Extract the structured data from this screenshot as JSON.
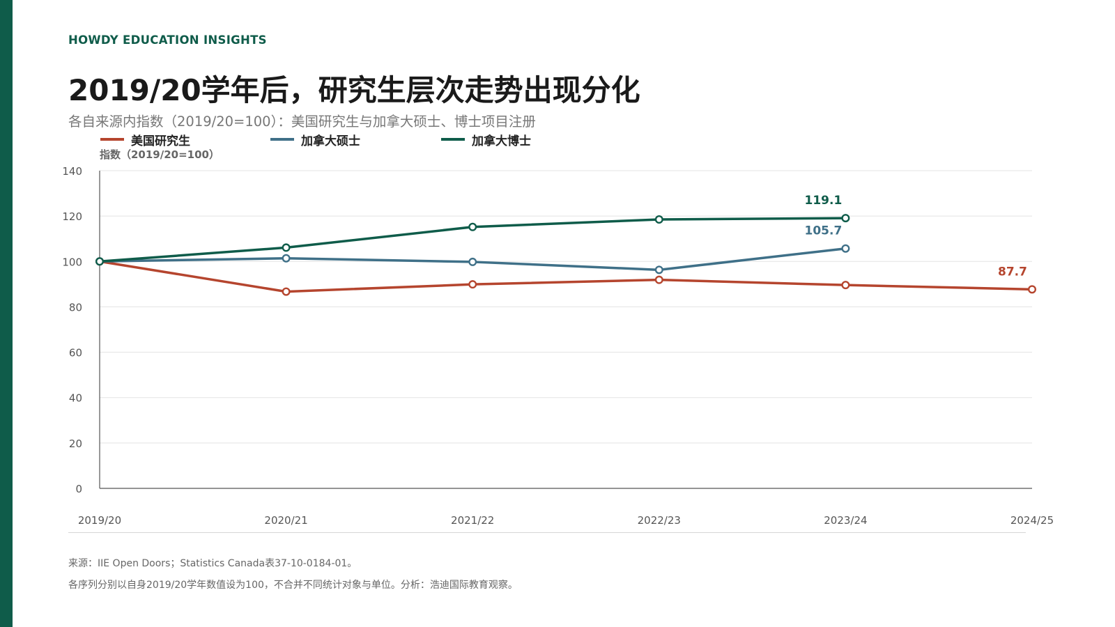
{
  "header": {
    "brand": "HOWDY EDUCATION INSIGHTS",
    "title": "2019/20学年后，研究生层次走势出现分化",
    "subtitle": "各自来源内指数（2019/20=100）：美国研究生与加拿大硕士、博士项目注册"
  },
  "legend": [
    {
      "label": "美国研究生",
      "color": "#b5452e"
    },
    {
      "label": "加拿大硕士",
      "color": "#3f7088"
    },
    {
      "label": "加拿大博士",
      "color": "#0f5c4a"
    }
  ],
  "chart_data": {
    "type": "line",
    "ylabel": "指数（2019/20=100）",
    "ylim": [
      0,
      140
    ],
    "yticks": [
      "0",
      "20",
      "40",
      "60",
      "80",
      "100",
      "120",
      "140"
    ],
    "categories": [
      "2019/20",
      "2020/21",
      "2021/22",
      "2022/23",
      "2023/24",
      "2024/25"
    ],
    "grid": true,
    "legend_position": "top-left",
    "series": [
      {
        "name": "美国研究生",
        "color": "#b5452e",
        "values": [
          100,
          86.7,
          89.9,
          91.9,
          89.6,
          87.7
        ],
        "end_label": "87.7"
      },
      {
        "name": "加拿大硕士",
        "color": "#3f7088",
        "values": [
          100,
          101.4,
          99.8,
          96.3,
          105.7,
          null
        ],
        "end_label": "105.7"
      },
      {
        "name": "加拿大博士",
        "color": "#0f5c4a",
        "values": [
          100,
          106.1,
          115.2,
          118.5,
          119.1,
          null
        ],
        "end_label": "119.1"
      }
    ]
  },
  "footer": {
    "source": "来源：IIE Open Doors；Statistics Canada表37-10-0184-01。",
    "note": "各序列分别以自身2019/20学年数值设为100，不合并不同统计对象与单位。分析：浩迪国际教育观察。"
  }
}
